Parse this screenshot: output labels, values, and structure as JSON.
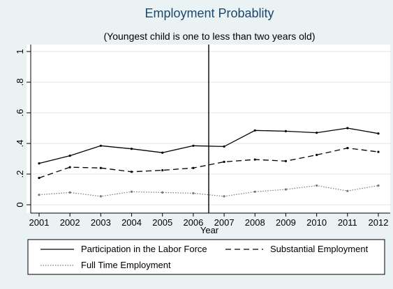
{
  "chart_data": {
    "type": "line",
    "title": "Employment Probablity",
    "subtitle": "(Youngest child is one to less than two years old)",
    "xlabel": "Year",
    "ylabel": "",
    "x": [
      2001,
      2002,
      2003,
      2004,
      2005,
      2006,
      2007,
      2008,
      2009,
      2010,
      2011,
      2012
    ],
    "xlim": [
      2001,
      2012
    ],
    "ylim": [
      0,
      1
    ],
    "x_ticks": [
      "2001",
      "2002",
      "2003",
      "2004",
      "2005",
      "2006",
      "2007",
      "2008",
      "2009",
      "2010",
      "2011",
      "2012"
    ],
    "y_ticks": [
      {
        "value": 0,
        "label": "0"
      },
      {
        "value": 0.2,
        "label": ".2"
      },
      {
        "value": 0.4,
        "label": ".4"
      },
      {
        "value": 0.6,
        "label": ".6"
      },
      {
        "value": 0.8,
        "label": ".8"
      },
      {
        "value": 1,
        "label": "1"
      }
    ],
    "vertical_reference_line_x": 2006.5,
    "grid": "horizontal",
    "legend_position": "bottom",
    "series": [
      {
        "name": "Participation in the Labor Force",
        "style": "solid",
        "color": "#000000",
        "values": [
          0.27,
          0.32,
          0.385,
          0.365,
          0.34,
          0.385,
          0.38,
          0.485,
          0.48,
          0.47,
          0.5,
          0.465
        ]
      },
      {
        "name": "Substantial Employment",
        "style": "dashed",
        "color": "#000000",
        "values": [
          0.175,
          0.245,
          0.24,
          0.215,
          0.225,
          0.24,
          0.28,
          0.295,
          0.285,
          0.325,
          0.37,
          0.345
        ]
      },
      {
        "name": "Full Time Employment",
        "style": "dotted",
        "color": "#777777",
        "values": [
          0.065,
          0.08,
          0.055,
          0.085,
          0.08,
          0.075,
          0.055,
          0.085,
          0.1,
          0.125,
          0.09,
          0.125
        ]
      }
    ]
  }
}
